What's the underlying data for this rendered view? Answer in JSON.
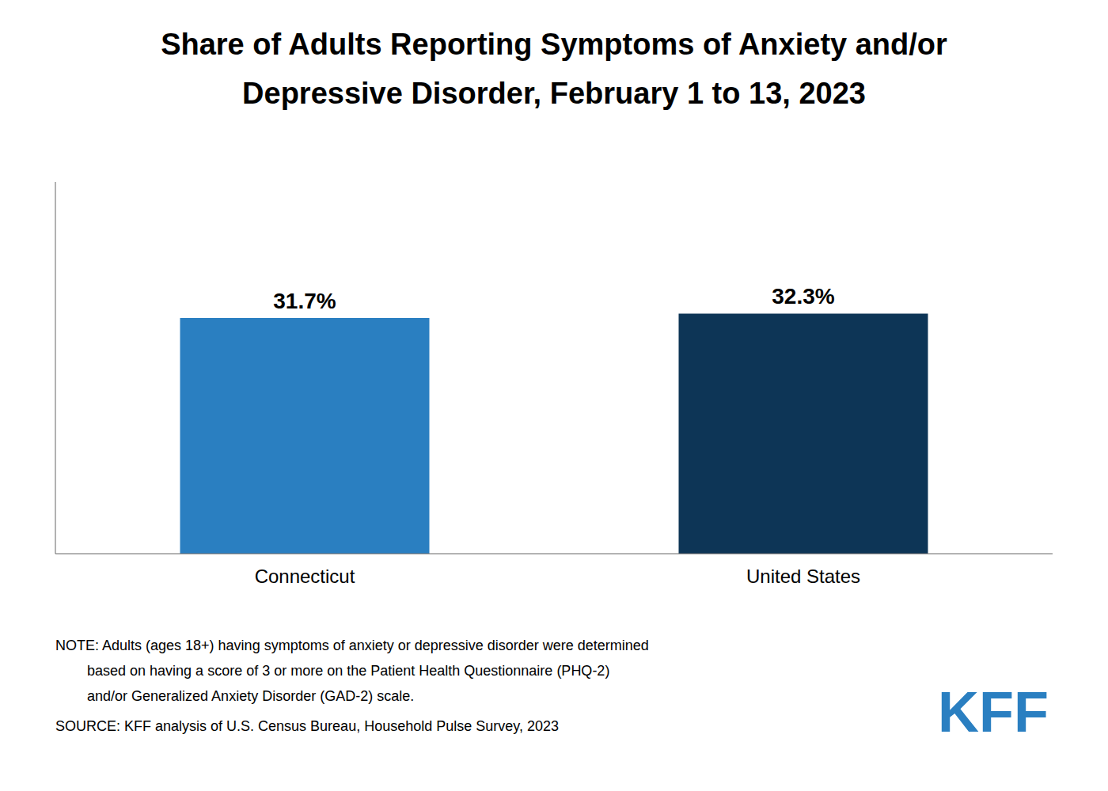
{
  "chart_data": {
    "type": "bar",
    "title": "Share of Adults Reporting Symptoms of Anxiety and/or\nDepressive Disorder, February 1 to 13, 2023",
    "categories": [
      "Connecticut",
      "United States"
    ],
    "values": [
      31.7,
      32.3
    ],
    "value_labels": [
      "31.7%",
      "32.3%"
    ],
    "colors": [
      "#2a7fc1",
      "#0d3556"
    ],
    "ylim": [
      0,
      50
    ],
    "data_labels": true,
    "tick_labels": "x",
    "annotations": [
      {
        "text": "NOTE: Adults (ages 18+) having symptoms of anxiety or depressive disorder were determined"
      },
      {
        "text": "        based on having a score of 3 or more on the Patient Health Questionnaire (PHQ-2)"
      },
      {
        "text": "        and/or Generalized Anxiety Disorder (GAD-2) scale."
      },
      {
        "text": "SOURCE: KFF analysis of U.S. Census Bureau, Household Pulse Survey, 2023"
      },
      {
        "text": "KFF",
        "color": "#2a7fc1"
      }
    ]
  }
}
